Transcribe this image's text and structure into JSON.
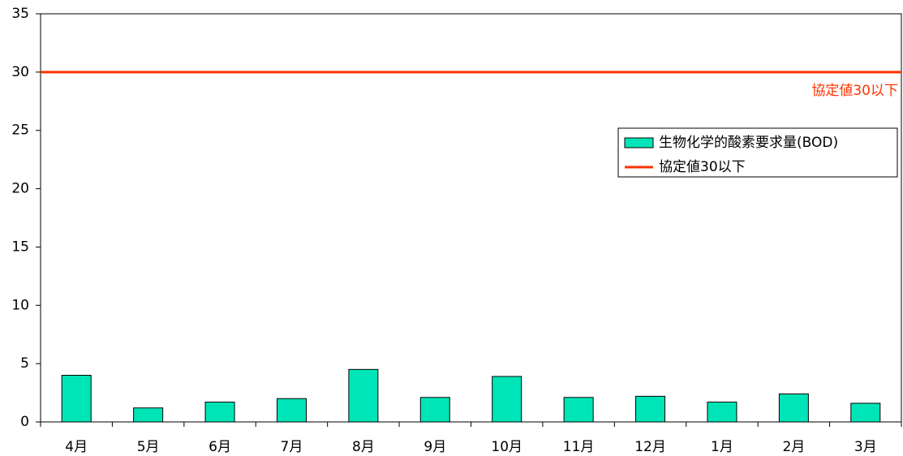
{
  "chart_data": {
    "type": "bar",
    "categories": [
      "4月",
      "5月",
      "6月",
      "7月",
      "8月",
      "9月",
      "10月",
      "11月",
      "12月",
      "1月",
      "2月",
      "3月"
    ],
    "series": [
      {
        "name": "生物化学的酸素要求量(BOD)",
        "color": "#00e5b8",
        "values": [
          4.0,
          1.2,
          1.7,
          2.0,
          4.5,
          2.1,
          3.9,
          2.1,
          2.2,
          1.7,
          2.4,
          1.6
        ]
      }
    ],
    "reference_line": {
      "name": "協定値30以下",
      "value": 30,
      "color": "#ff3300"
    },
    "ylim": [
      0,
      35
    ],
    "yticks": [
      0,
      5,
      10,
      15,
      20,
      25,
      30,
      35
    ]
  }
}
